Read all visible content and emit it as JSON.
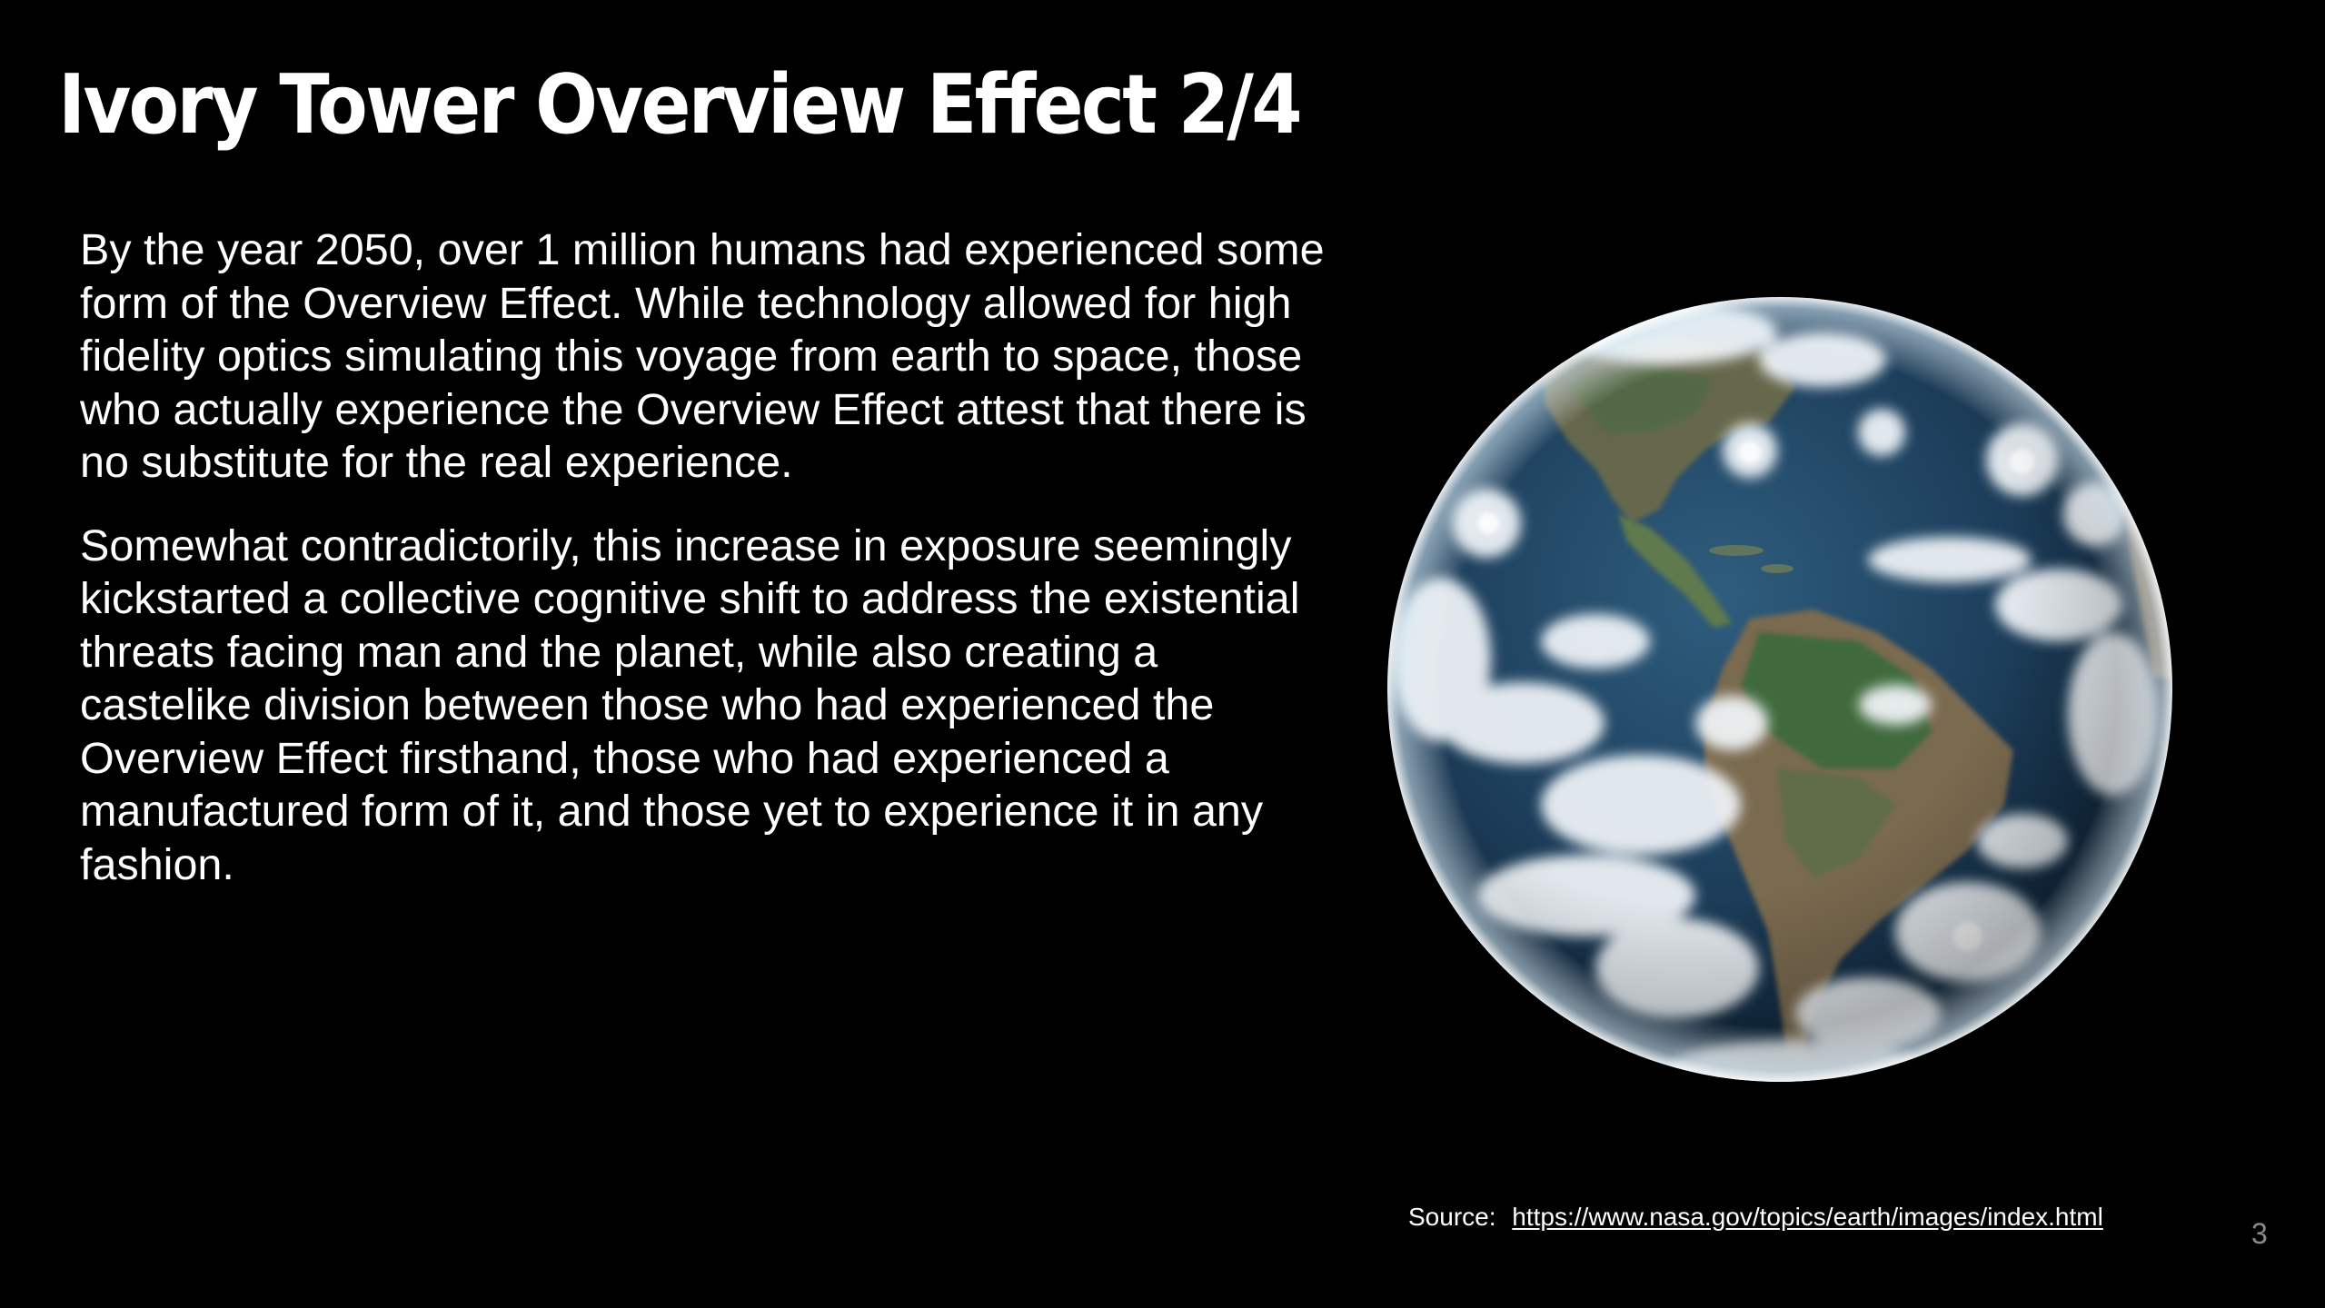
{
  "slide": {
    "title": "Ivory Tower Overview Effect 2/4",
    "paragraphs": [
      "By the year 2050, over 1 million humans had experienced some form of the Overview Effect. While technology allowed for high fidelity optics simulating this voyage from earth to space, those who actually experience the Overview Effect attest that there is no substitute for the real experience.",
      "Somewhat contradictorily, this increase in exposure seemingly kickstarted a collective cognitive shift to address the existential threats facing man and the planet, while also creating a castelike division between those who had experienced the Overview Effect firsthand, those who had experienced a manufactured form of it, and those yet to experience it in any fashion."
    ],
    "image": {
      "icon": "earth-globe-image"
    },
    "source": {
      "label": "Source:",
      "link_text": "https://www.nasa.gov/topics/earth/images/index.html"
    },
    "page_number": "3"
  },
  "colors": {
    "background": "#000000",
    "text": "#ffffff",
    "page_number": "#8a8a8a"
  }
}
